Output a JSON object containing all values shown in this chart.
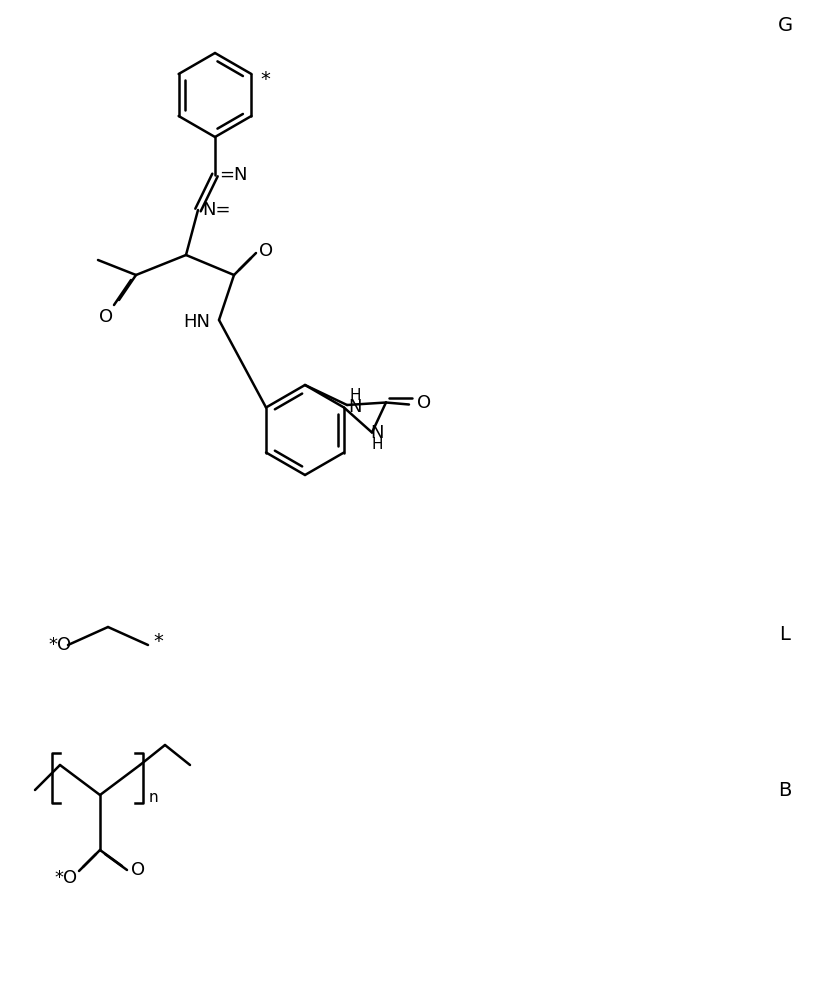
{
  "background_color": "#ffffff",
  "line_color": "#000000",
  "line_width": 1.8,
  "font_size": 13,
  "label_G": "G",
  "label_L": "L",
  "label_B": "B"
}
